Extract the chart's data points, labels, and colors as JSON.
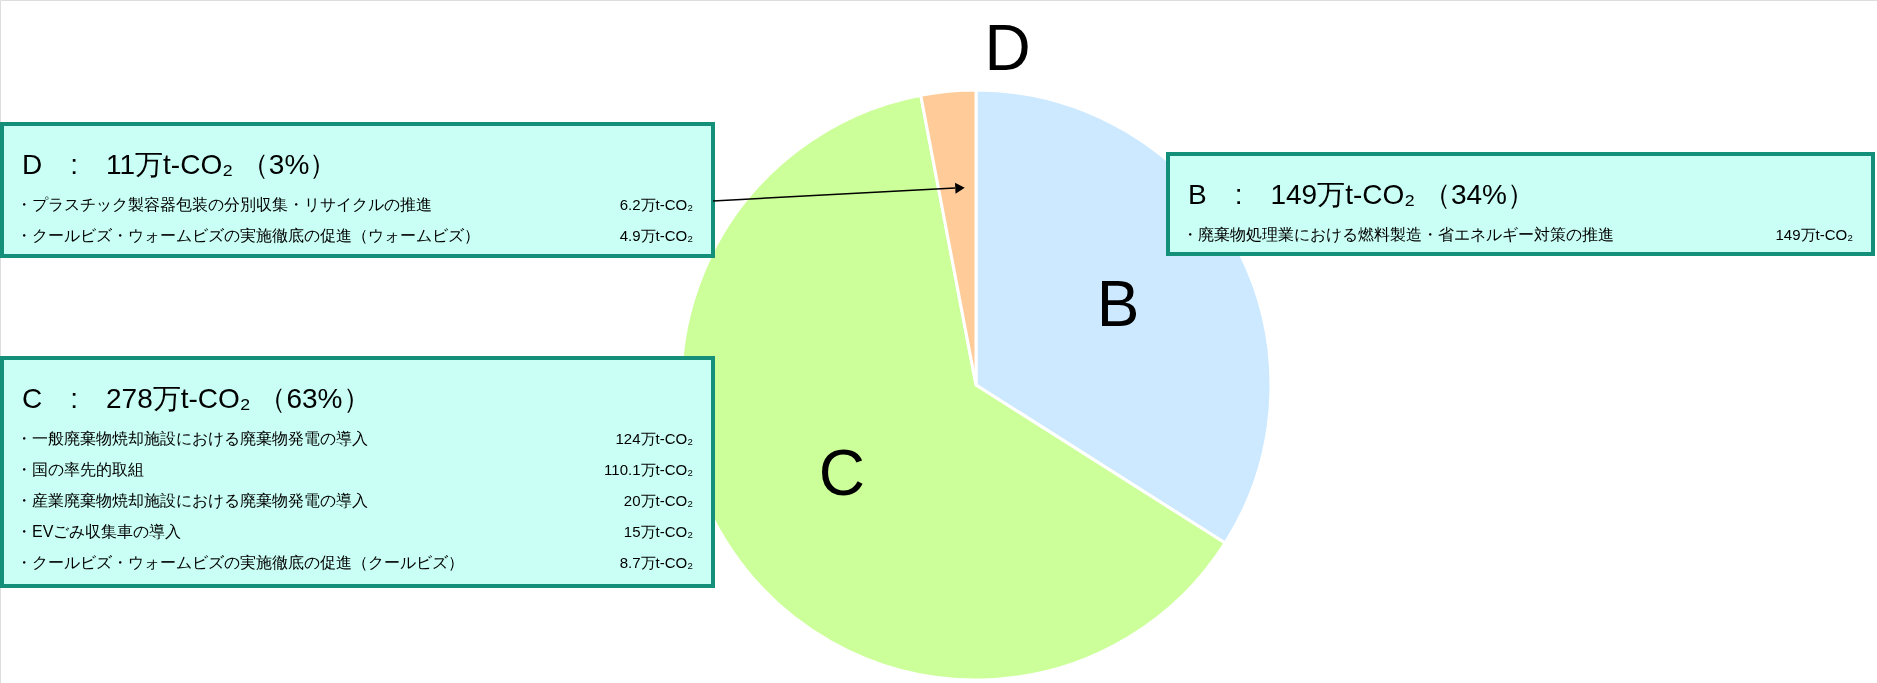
{
  "chart_data": {
    "type": "pie",
    "categories": [
      "B",
      "C",
      "D"
    ],
    "values": [
      34,
      63,
      3
    ],
    "colors": [
      "#cce9ff",
      "#ccff99",
      "#ffcc99"
    ],
    "annotations": [
      "D　:　11万t-CO₂ （3%）",
      "・プラスチック製容器包装の分別収集・リサイクルの推進",
      "6.2万t-CO₂",
      "・クールビズ・ウォームビズの実施徹底の促進（ウォームビズ）",
      "4.9万t-CO₂",
      "B　:　149万t-CO₂ （34%）",
      "・廃棄物処理業における燃料製造・省エネルギー対策の推進",
      "149万t-CO₂",
      "C　:　278万t-CO₂ （63%）",
      "・一般廃棄物焼却施設における廃棄物発電の導入",
      "124万t-CO₂",
      "・国の率先的取組",
      "110.1万t-CO₂",
      "・産業廃棄物焼却施設における廃棄物発電の導入",
      "20万t-CO₂",
      "・EVごみ収集車の導入",
      "15万t-CO₂",
      "・クールビズ・ウォームビズの実施徹底の促進（クールビズ）",
      "8.7万t-CO₂"
    ]
  }
}
